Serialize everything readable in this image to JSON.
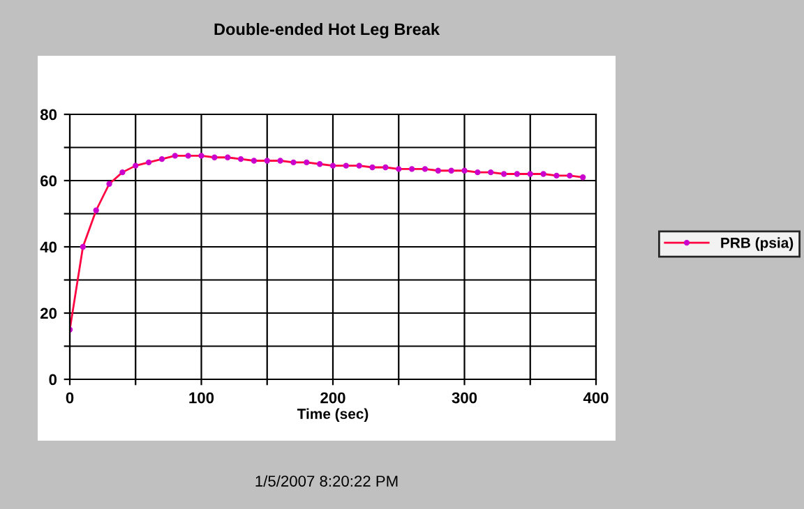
{
  "chart_data": {
    "type": "line",
    "title": "Double-ended Hot Leg Break",
    "xlabel": "Time (sec)",
    "x": [
      0,
      10,
      20,
      30,
      40,
      50,
      60,
      70,
      80,
      90,
      100,
      110,
      120,
      130,
      140,
      150,
      160,
      170,
      180,
      190,
      200,
      210,
      220,
      230,
      240,
      250,
      260,
      270,
      280,
      290,
      300,
      310,
      320,
      330,
      340,
      350,
      360,
      370,
      380,
      390
    ],
    "series": [
      {
        "name": "PRB (psia)",
        "color": "#ff0040",
        "values": [
          15,
          40,
          51,
          59,
          62.5,
          64.5,
          65.5,
          66.5,
          67.5,
          67.5,
          67.5,
          67,
          67,
          66.5,
          66,
          66,
          66,
          65.5,
          65.5,
          65,
          64.5,
          64.5,
          64.5,
          64,
          64,
          63.5,
          63.5,
          63.5,
          63,
          63,
          63,
          62.5,
          62.5,
          62,
          62,
          62,
          62,
          61.5,
          61.5,
          61
        ]
      }
    ],
    "xlim": [
      0,
      400
    ],
    "xticks": [
      0,
      {
        "value": 50,
        "label": null
      },
      100,
      {
        "value": 150,
        "label": null
      },
      200,
      {
        "value": 250,
        "label": null
      },
      300,
      {
        "value": 350,
        "label": null
      },
      400
    ],
    "ylim": [
      0,
      80
    ],
    "yticks": [
      0,
      {
        "value": 10,
        "label": null
      },
      20,
      {
        "value": 30,
        "label": null
      },
      40,
      {
        "value": 50,
        "label": null
      },
      60,
      {
        "value": 70,
        "label": null
      },
      80
    ],
    "grid": true,
    "legend": "right",
    "marker": "circle",
    "line_style": "solid",
    "annotations": [
      "1/5/2007 8:20:22 PM"
    ]
  }
}
